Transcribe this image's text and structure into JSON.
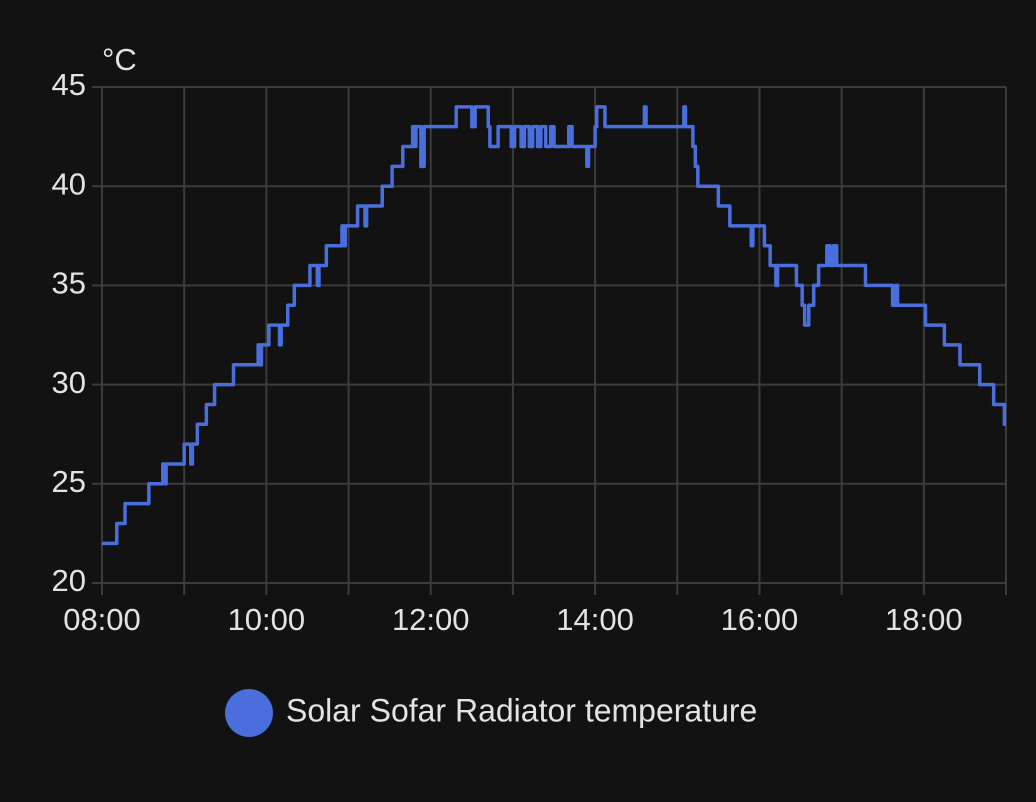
{
  "chart_data": {
    "type": "line",
    "step": true,
    "y_unit": "°C",
    "x": [
      8.0,
      8.18,
      8.28,
      8.57,
      8.74,
      8.76,
      8.78,
      9.0,
      9.08,
      9.1,
      9.16,
      9.27,
      9.37,
      9.6,
      9.9,
      9.92,
      9.94,
      10.03,
      10.16,
      10.18,
      10.26,
      10.34,
      10.53,
      10.62,
      10.64,
      10.73,
      10.92,
      10.94,
      10.96,
      11.11,
      11.2,
      11.22,
      11.41,
      11.53,
      11.66,
      11.78,
      11.8,
      11.82,
      11.88,
      11.92,
      12.31,
      12.5,
      12.54,
      12.7,
      12.72,
      12.82,
      12.98,
      13.02,
      13.1,
      13.14,
      13.2,
      13.24,
      13.3,
      13.34,
      13.4,
      13.46,
      13.5,
      13.68,
      13.72,
      13.9,
      13.92,
      14.0,
      14.02,
      14.12,
      14.6,
      14.62,
      15.08,
      15.1,
      15.19,
      15.22,
      15.25,
      15.5,
      15.64,
      15.9,
      15.92,
      16.06,
      16.13,
      16.2,
      16.22,
      16.45,
      16.52,
      16.55,
      16.6,
      16.66,
      16.72,
      16.82,
      16.86,
      16.9,
      16.94,
      17.29,
      17.62,
      17.66,
      17.68,
      18.02,
      18.25,
      18.44,
      18.68,
      18.85,
      18.98
    ],
    "series": [
      {
        "name": "Solar Sofar Radiator temperature",
        "color": "#4a6fdc",
        "values": [
          22,
          23,
          24,
          25,
          26,
          25,
          26,
          27,
          26,
          27,
          28,
          29,
          30,
          31,
          32,
          31,
          32,
          33,
          32,
          33,
          34,
          35,
          36,
          35,
          36,
          37,
          38,
          37,
          38,
          39,
          38,
          39,
          40,
          41,
          42,
          43,
          42,
          43,
          41,
          43,
          44,
          43,
          44,
          43,
          42,
          43,
          42,
          43,
          42,
          43,
          42,
          43,
          42,
          43,
          42,
          43,
          42,
          43,
          42,
          41,
          42,
          43,
          44,
          43,
          44,
          43,
          44,
          43,
          42,
          41,
          40,
          39,
          38,
          37,
          38,
          37,
          36,
          35,
          36,
          35,
          34,
          33,
          34,
          35,
          36,
          37,
          36,
          37,
          36,
          35,
          34,
          35,
          34,
          33,
          32,
          31,
          30,
          29,
          28
        ]
      }
    ],
    "xlim": [
      8,
      19
    ],
    "xticks": [
      {
        "value": 8,
        "label": "08:00"
      },
      {
        "value": 10,
        "label": "10:00"
      },
      {
        "value": 12,
        "label": "12:00"
      },
      {
        "value": 14,
        "label": "14:00"
      },
      {
        "value": 16,
        "label": "16:00"
      },
      {
        "value": 18,
        "label": "18:00"
      }
    ],
    "xminorticks": [
      9,
      11,
      13,
      15,
      17,
      19
    ],
    "ylim": [
      20,
      45
    ],
    "yticks": [
      20,
      25,
      30,
      35,
      40,
      45
    ],
    "grid": true
  }
}
